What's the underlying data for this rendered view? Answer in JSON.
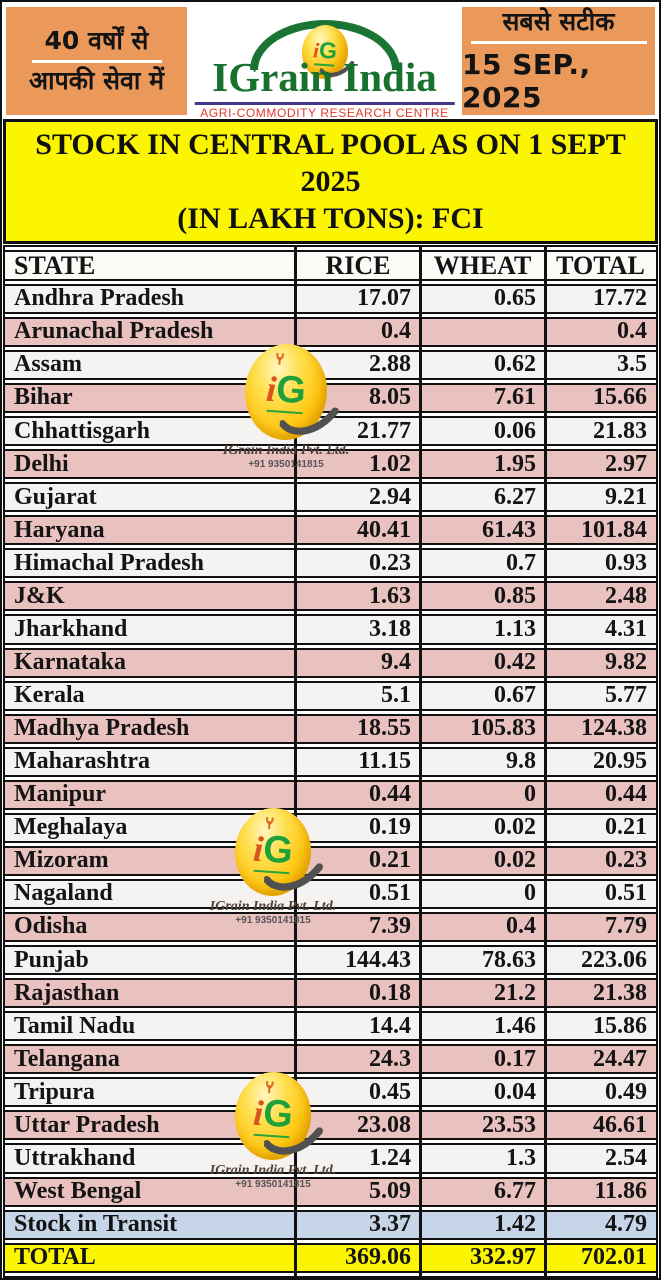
{
  "header": {
    "left_badge": {
      "line1": "40 वर्षों से",
      "line2": "आपकी सेवा में"
    },
    "logo": {
      "monogram_i": "i",
      "monogram_g": "G",
      "name": "IGrain India",
      "tagline": "AGRI-COMMODITY RESEARCH CENTRE"
    },
    "right_badge": {
      "line1": "सबसे सटीक",
      "date": "15 SEP., 2025"
    }
  },
  "title": {
    "line1": "STOCK IN CENTRAL POOL AS ON 1 SEPT 2025",
    "line2": "(IN LAKH TONS): FCI"
  },
  "watermark": {
    "monogram_i": "i",
    "monogram_g": "G",
    "company": "IGrain India Pvt. Ltd.",
    "phone": "+91 9350141815"
  },
  "chart_data": {
    "type": "table",
    "title": "STOCK IN CENTRAL POOL AS ON 1 SEPT 2025 (IN LAKH TONS): FCI",
    "unit": "lakh tons",
    "source": "FCI",
    "columns": [
      "STATE",
      "RICE",
      "WHEAT",
      "TOTAL"
    ],
    "rows": [
      {
        "state": "Andhra Pradesh",
        "rice": "17.07",
        "wheat": "0.65",
        "total": "17.72"
      },
      {
        "state": "Arunachal Pradesh",
        "rice": "0.4",
        "wheat": "",
        "total": "0.4"
      },
      {
        "state": "Assam",
        "rice": "2.88",
        "wheat": "0.62",
        "total": "3.5"
      },
      {
        "state": "Bihar",
        "rice": "8.05",
        "wheat": "7.61",
        "total": "15.66"
      },
      {
        "state": "Chhattisgarh",
        "rice": "21.77",
        "wheat": "0.06",
        "total": "21.83"
      },
      {
        "state": "Delhi",
        "rice": "1.02",
        "wheat": "1.95",
        "total": "2.97"
      },
      {
        "state": "Gujarat",
        "rice": "2.94",
        "wheat": "6.27",
        "total": "9.21"
      },
      {
        "state": "Haryana",
        "rice": "40.41",
        "wheat": "61.43",
        "total": "101.84"
      },
      {
        "state": "Himachal Pradesh",
        "rice": "0.23",
        "wheat": "0.7",
        "total": "0.93"
      },
      {
        "state": "J&K",
        "rice": "1.63",
        "wheat": "0.85",
        "total": "2.48"
      },
      {
        "state": "Jharkhand",
        "rice": "3.18",
        "wheat": "1.13",
        "total": "4.31"
      },
      {
        "state": "Karnataka",
        "rice": "9.4",
        "wheat": "0.42",
        "total": "9.82"
      },
      {
        "state": "Kerala",
        "rice": "5.1",
        "wheat": "0.67",
        "total": "5.77"
      },
      {
        "state": "Madhya Pradesh",
        "rice": "18.55",
        "wheat": "105.83",
        "total": "124.38"
      },
      {
        "state": "Maharashtra",
        "rice": "11.15",
        "wheat": "9.8",
        "total": "20.95"
      },
      {
        "state": "Manipur",
        "rice": "0.44",
        "wheat": "0",
        "total": "0.44"
      },
      {
        "state": "Meghalaya",
        "rice": "0.19",
        "wheat": "0.02",
        "total": "0.21"
      },
      {
        "state": "Mizoram",
        "rice": "0.21",
        "wheat": "0.02",
        "total": "0.23"
      },
      {
        "state": "Nagaland",
        "rice": "0.51",
        "wheat": "0",
        "total": "0.51"
      },
      {
        "state": "Odisha",
        "rice": "7.39",
        "wheat": "0.4",
        "total": "7.79"
      },
      {
        "state": "Punjab",
        "rice": "144.43",
        "wheat": "78.63",
        "total": "223.06"
      },
      {
        "state": "Rajasthan",
        "rice": "0.18",
        "wheat": "21.2",
        "total": "21.38"
      },
      {
        "state": "Tamil Nadu",
        "rice": "14.4",
        "wheat": "1.46",
        "total": "15.86"
      },
      {
        "state": "Telangana",
        "rice": "24.3",
        "wheat": "0.17",
        "total": "24.47"
      },
      {
        "state": "Tripura",
        "rice": "0.45",
        "wheat": "0.04",
        "total": "0.49"
      },
      {
        "state": "Uttar Pradesh",
        "rice": "23.08",
        "wheat": "23.53",
        "total": "46.61"
      },
      {
        "state": "Uttrakhand",
        "rice": "1.24",
        "wheat": "1.3",
        "total": "2.54"
      },
      {
        "state": "West Bengal",
        "rice": "5.09",
        "wheat": "6.77",
        "total": "11.86"
      }
    ],
    "footer_rows": [
      {
        "state": "Stock in Transit",
        "rice": "3.37",
        "wheat": "1.42",
        "total": "4.79",
        "style": "transit"
      },
      {
        "state": "TOTAL",
        "rice": "369.06",
        "wheat": "332.97",
        "total": "702.01",
        "style": "total"
      }
    ]
  },
  "colors": {
    "accent_orange": "#EA995B",
    "title_yellow": "#FBF502",
    "row_white": "#F5F3F1",
    "row_pink": "#E9C2C0",
    "row_transit_blue": "#C6D5E7",
    "row_total_yellow": "#FBF502",
    "brand_green": "#19712F",
    "tagline_red": "#E23A2B",
    "border_black": "#111111"
  }
}
